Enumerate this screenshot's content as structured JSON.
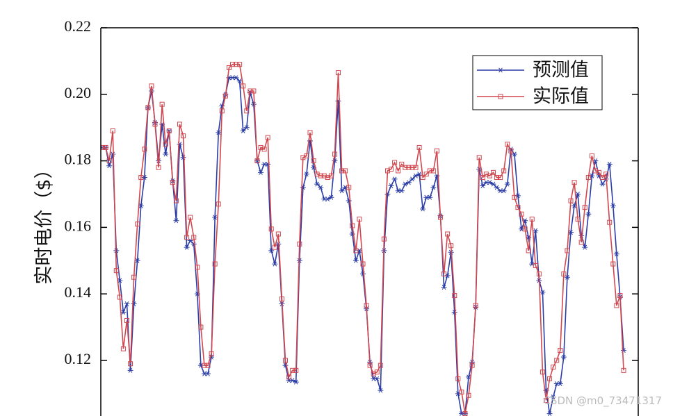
{
  "chart_data": {
    "type": "line",
    "y_label": "实时电价（$）",
    "ylim": [
      0.104,
      0.22
    ],
    "yticks": [
      0.12,
      0.14,
      0.16,
      0.18,
      {
        "value": 0.2,
        "label": "0.20"
      },
      0.22
    ],
    "legend": "upper right",
    "watermark": "CSDN @m0_73471317",
    "series": [
      {
        "name": "预测值",
        "color": "#2a3ca6",
        "marker": "asterisk",
        "values": [
          0.184,
          0.184,
          0.1785,
          0.182,
          0.153,
          0.144,
          0.1345,
          0.137,
          0.117,
          0.137,
          0.15,
          0.1665,
          0.175,
          0.196,
          0.201,
          0.1915,
          0.18,
          0.191,
          0.182,
          0.189,
          0.174,
          0.162,
          0.185,
          0.181,
          0.154,
          0.156,
          0.155,
          0.14,
          0.1185,
          0.116,
          0.116,
          0.121,
          0.163,
          0.1885,
          0.1965,
          0.2,
          0.205,
          0.205,
          0.205,
          0.204,
          0.189,
          0.19,
          0.2005,
          0.197,
          0.18,
          0.1765,
          0.179,
          0.179,
          0.153,
          0.149,
          0.155,
          0.137,
          0.1185,
          0.114,
          0.114,
          0.1135,
          0.15,
          0.172,
          0.176,
          0.186,
          0.178,
          0.173,
          0.172,
          0.1685,
          0.1685,
          0.169,
          0.18,
          0.198,
          0.171,
          0.172,
          0.168,
          0.158,
          0.15,
          0.153,
          0.146,
          0.1355,
          0.1195,
          0.1145,
          0.1145,
          0.111,
          0.153,
          0.17,
          0.1725,
          0.1745,
          0.171,
          0.171,
          0.173,
          0.1735,
          0.1745,
          0.1755,
          0.176,
          0.1655,
          0.169,
          0.169,
          0.172,
          0.1755,
          0.1635,
          0.142,
          0.1455,
          0.1525,
          0.1345,
          0.11,
          0.104,
          0.104,
          0.115,
          0.1195,
          0.136,
          0.1775,
          0.1725,
          0.1735,
          0.1735,
          0.173,
          0.172,
          0.171,
          0.171,
          0.173,
          0.1835,
          0.182,
          0.1695,
          0.1595,
          0.162,
          0.157,
          0.149,
          0.159,
          0.144,
          0.1405,
          0.111,
          0.104,
          0.109,
          0.113,
          0.113,
          0.121,
          0.145,
          0.1585,
          0.1665,
          0.17,
          0.1575,
          0.154,
          0.164,
          0.1755,
          0.18,
          0.1755,
          0.173,
          0.1745,
          0.179,
          0.1665,
          0.152,
          0.139,
          0.123
        ]
      },
      {
        "name": "实际值",
        "color": "#d0474f",
        "marker": "square",
        "values": [
          0.184,
          0.184,
          0.18,
          0.189,
          0.147,
          0.139,
          0.1235,
          0.132,
          0.119,
          0.145,
          0.161,
          0.175,
          0.1835,
          0.196,
          0.2025,
          0.191,
          0.178,
          0.197,
          0.185,
          0.189,
          0.1735,
          0.168,
          0.191,
          0.1875,
          0.157,
          0.163,
          0.157,
          0.148,
          0.13,
          0.1185,
          0.1185,
          0.122,
          0.149,
          0.167,
          0.195,
          0.1995,
          0.208,
          0.209,
          0.209,
          0.209,
          0.2025,
          0.195,
          0.201,
          0.201,
          0.18,
          0.184,
          0.1835,
          0.187,
          0.1595,
          0.154,
          0.158,
          0.1385,
          0.12,
          0.115,
          0.117,
          0.117,
          0.155,
          0.181,
          0.1815,
          0.1885,
          0.18,
          0.176,
          0.1755,
          0.1755,
          0.175,
          0.1755,
          0.182,
          0.2065,
          0.177,
          0.177,
          0.172,
          0.1605,
          0.153,
          0.1625,
          0.149,
          0.1365,
          0.1185,
          0.116,
          0.1165,
          0.1185,
          0.1565,
          0.177,
          0.1775,
          0.1795,
          0.177,
          0.179,
          0.178,
          0.178,
          0.178,
          0.178,
          0.184,
          0.175,
          0.176,
          0.177,
          0.177,
          0.183,
          0.163,
          0.146,
          0.158,
          0.1545,
          0.1395,
          0.1145,
          0.1105,
          0.104,
          0.1095,
          0.1185,
          0.1365,
          0.181,
          0.175,
          0.176,
          0.1755,
          0.1765,
          0.175,
          0.175,
          0.177,
          0.185,
          0.183,
          0.169,
          0.166,
          0.164,
          0.1595,
          0.153,
          0.1625,
          0.1485,
          0.146,
          0.1165,
          0.108,
          0.1145,
          0.118,
          0.12,
          0.123,
          0.146,
          0.153,
          0.168,
          0.1735,
          0.1625,
          0.1555,
          0.166,
          0.175,
          0.1815,
          0.177,
          0.1765,
          0.175,
          0.176,
          0.1615,
          0.149,
          0.1365,
          0.1395,
          0.117
        ]
      }
    ]
  }
}
